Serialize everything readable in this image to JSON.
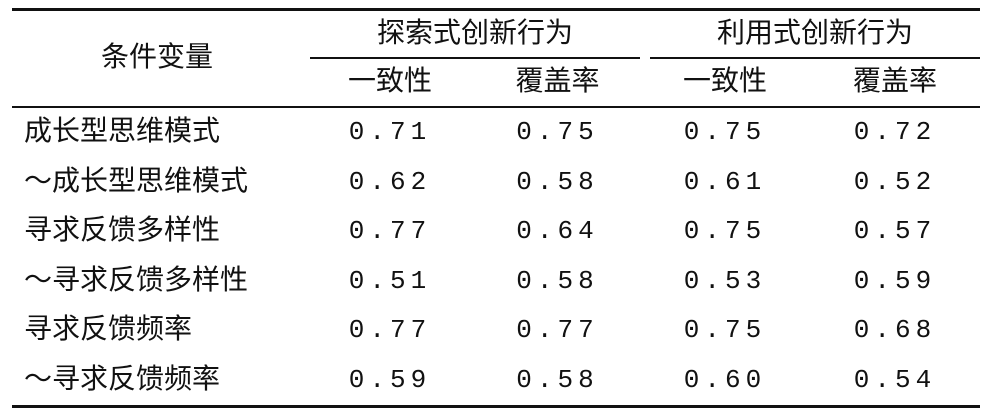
{
  "table": {
    "header": {
      "row_label": "条件变量",
      "groups": [
        "探索式创新行为",
        "利用式创新行为"
      ],
      "subheaders": [
        "一致性",
        "覆盖率",
        "一致性",
        "覆盖率"
      ]
    },
    "rows": [
      [
        "成长型思维模式",
        "0.71",
        "0.75",
        "0.75",
        "0.72"
      ],
      [
        "～成长型思维模式",
        "0.62",
        "0.58",
        "0.61",
        "0.52"
      ],
      [
        "寻求反馈多样性",
        "0.77",
        "0.64",
        "0.75",
        "0.57"
      ],
      [
        "～寻求反馈多样性",
        "0.51",
        "0.58",
        "0.53",
        "0.59"
      ],
      [
        "寻求反馈频率",
        "0.77",
        "0.77",
        "0.75",
        "0.68"
      ],
      [
        "～寻求反馈频率",
        "0.59",
        "0.58",
        "0.60",
        "0.54"
      ]
    ]
  }
}
